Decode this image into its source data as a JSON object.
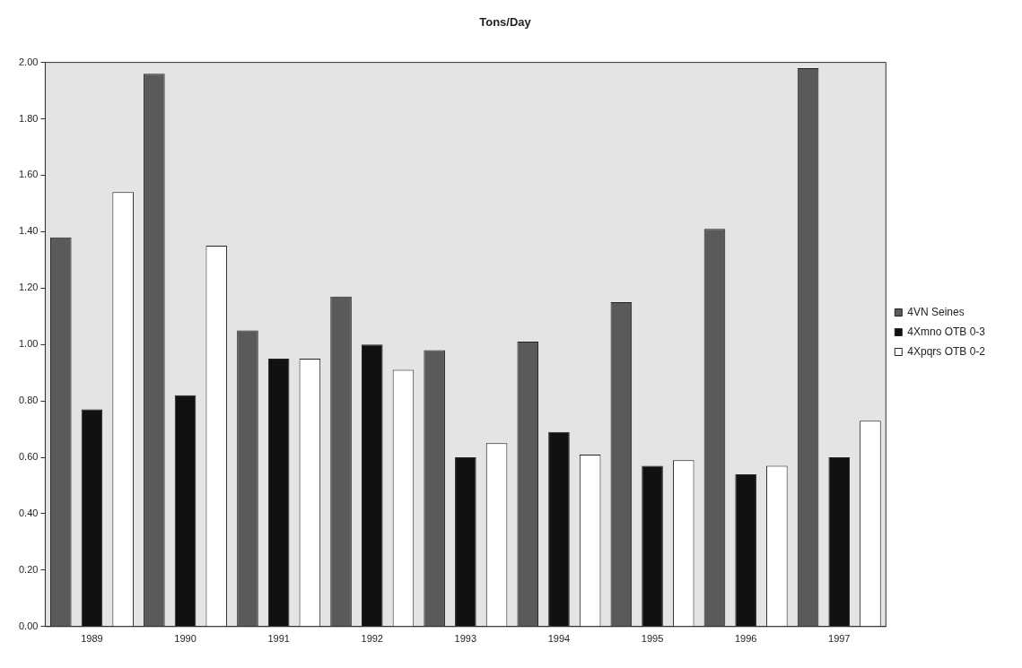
{
  "chart_data": {
    "type": "bar",
    "title": "Tons/Day",
    "categories": [
      "1989",
      "1990",
      "1991",
      "1992",
      "1993",
      "1994",
      "1995",
      "1996",
      "1997"
    ],
    "series": [
      {
        "name": "4VN Seines",
        "color": "#5a5a5a",
        "values": [
          1.38,
          1.96,
          1.05,
          1.17,
          0.98,
          1.01,
          1.15,
          1.41,
          1.98
        ]
      },
      {
        "name": "4Xmno OTB 0-3",
        "color": "#111111",
        "values": [
          0.77,
          0.82,
          0.95,
          1.0,
          0.6,
          0.69,
          0.57,
          0.54,
          0.6
        ]
      },
      {
        "name": "4Xpqrs OTB 0-2",
        "color": "#ffffff",
        "values": [
          1.54,
          1.35,
          0.95,
          0.91,
          0.65,
          0.61,
          0.59,
          0.57,
          0.73
        ]
      }
    ],
    "ylim": [
      0,
      2
    ],
    "yticks": [
      {
        "value": 0,
        "label": "0.00"
      },
      {
        "value": 0.2,
        "label": "0.20"
      },
      {
        "value": 0.4,
        "label": "0.40"
      },
      {
        "value": 0.6,
        "label": "0.60"
      },
      {
        "value": 0.8,
        "label": "0.80"
      },
      {
        "value": 1,
        "label": "1.00"
      },
      {
        "value": 1.2,
        "label": "1.20"
      },
      {
        "value": 1.4,
        "label": "1.40"
      },
      {
        "value": 1.6,
        "label": "1.60"
      },
      {
        "value": 1.8,
        "label": "1.80"
      },
      {
        "value": 2,
        "label": "2.00"
      }
    ],
    "grid": false,
    "legend": "right"
  }
}
